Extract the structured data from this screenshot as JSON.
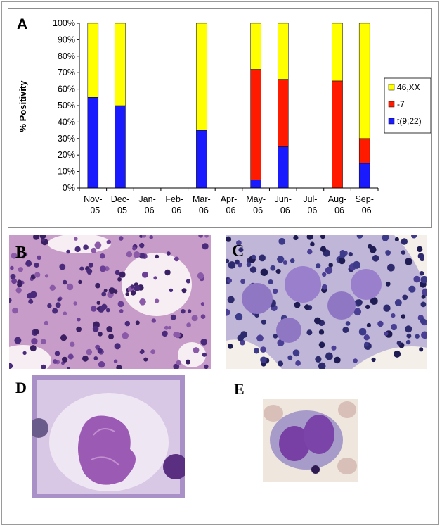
{
  "panels": {
    "a": "A",
    "b": "B",
    "c": "C",
    "d": "D",
    "e": "E"
  },
  "chart_data": {
    "type": "bar",
    "stacked": true,
    "title": "",
    "xlabel": "",
    "ylabel": "% Positivity",
    "ylim": [
      0,
      100
    ],
    "yticks": [
      "0%",
      "10%",
      "20%",
      "30%",
      "40%",
      "50%",
      "60%",
      "70%",
      "80%",
      "90%",
      "100%"
    ],
    "grid": false,
    "legend_position": "right",
    "categories": [
      [
        "Nov-",
        "05"
      ],
      [
        "Dec-",
        "05"
      ],
      [
        "Jan-",
        "06"
      ],
      [
        "Feb-",
        "06"
      ],
      [
        "Mar-",
        "06"
      ],
      [
        "Apr-",
        "06"
      ],
      [
        "May-",
        "06"
      ],
      [
        "Jun-",
        "06"
      ],
      [
        "Jul-",
        "06"
      ],
      [
        "Aug-",
        "06"
      ],
      [
        "Sep-",
        "06"
      ]
    ],
    "series": [
      {
        "name": "t(9;22)",
        "color": "#1a1aff",
        "values": [
          55,
          50,
          0,
          0,
          35,
          0,
          5,
          25,
          0,
          0,
          15
        ]
      },
      {
        "name": "-7",
        "color": "#ff1a00",
        "values": [
          0,
          0,
          0,
          0,
          0,
          0,
          67,
          41,
          0,
          65,
          15
        ]
      },
      {
        "name": "46,XX",
        "color": "#ffff00",
        "values": [
          45,
          50,
          0,
          0,
          65,
          0,
          28,
          34,
          0,
          35,
          70
        ]
      }
    ],
    "legend_order": [
      "46,XX",
      "-7",
      "t(9;22)"
    ]
  }
}
